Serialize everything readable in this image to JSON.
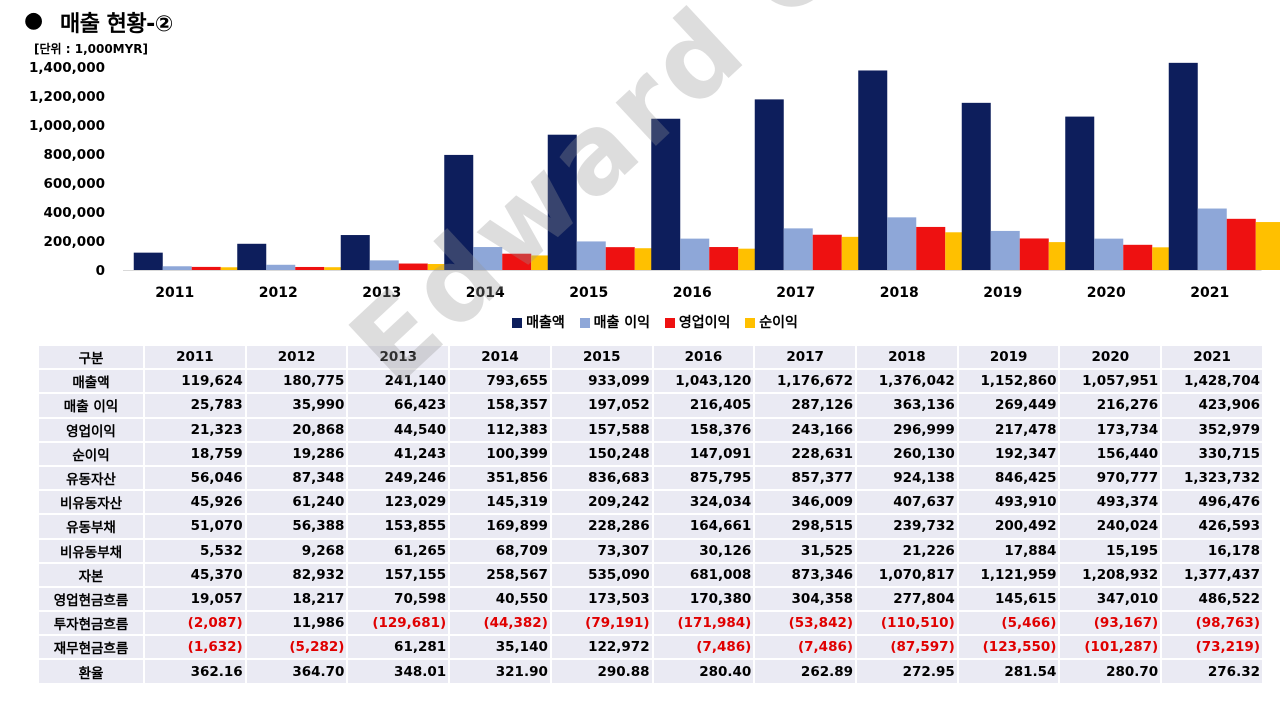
{
  "title": {
    "bullet": "●",
    "text": "매출 현황-②"
  },
  "unit_label": "[단위 : 1,000MYR]",
  "watermark": "Edward Choi",
  "colors": {
    "sales": "#0d1e5c",
    "gross": "#8ea7d8",
    "operating": "#ee1111",
    "net": "#ffc000"
  },
  "chart_data": {
    "type": "bar",
    "categories": [
      "2011",
      "2012",
      "2013",
      "2014",
      "2015",
      "2016",
      "2017",
      "2018",
      "2019",
      "2020",
      "2021"
    ],
    "series": [
      {
        "name": "매출액",
        "values": [
          119624,
          180775,
          241140,
          793655,
          933099,
          1043120,
          1176672,
          1376042,
          1152860,
          1057951,
          1428704
        ]
      },
      {
        "name": "매출 이익",
        "values": [
          25783,
          35990,
          66423,
          158357,
          197052,
          216405,
          287126,
          363136,
          269449,
          216276,
          423906
        ]
      },
      {
        "name": "영업이익",
        "values": [
          21323,
          20868,
          44540,
          112383,
          157588,
          158376,
          243166,
          296999,
          217478,
          173734,
          352979
        ]
      },
      {
        "name": "순이익",
        "values": [
          18759,
          19286,
          41243,
          100399,
          150248,
          147091,
          228631,
          260130,
          192347,
          156440,
          330715
        ]
      }
    ],
    "yticks": [
      "0",
      "200,000",
      "400,000",
      "600,000",
      "800,000",
      "1,000,000",
      "1,200,000",
      "1,400,000"
    ],
    "ylim": [
      0,
      1400000
    ],
    "legend_position": "bottom",
    "grid": false
  },
  "table": {
    "header": [
      "구분",
      "2011",
      "2012",
      "2013",
      "2014",
      "2015",
      "2016",
      "2017",
      "2018",
      "2019",
      "2020",
      "2021"
    ],
    "rows": [
      {
        "label": "매출액",
        "values": [
          "119,624",
          "180,775",
          "241,140",
          "793,655",
          "933,099",
          "1,043,120",
          "1,176,672",
          "1,376,042",
          "1,152,860",
          "1,057,951",
          "1,428,704"
        ]
      },
      {
        "label": "매출 이익",
        "values": [
          "25,783",
          "35,990",
          "66,423",
          "158,357",
          "197,052",
          "216,405",
          "287,126",
          "363,136",
          "269,449",
          "216,276",
          "423,906"
        ]
      },
      {
        "label": "영업이익",
        "values": [
          "21,323",
          "20,868",
          "44,540",
          "112,383",
          "157,588",
          "158,376",
          "243,166",
          "296,999",
          "217,478",
          "173,734",
          "352,979"
        ]
      },
      {
        "label": "순이익",
        "values": [
          "18,759",
          "19,286",
          "41,243",
          "100,399",
          "150,248",
          "147,091",
          "228,631",
          "260,130",
          "192,347",
          "156,440",
          "330,715"
        ]
      },
      {
        "label": "유동자산",
        "values": [
          "56,046",
          "87,348",
          "249,246",
          "351,856",
          "836,683",
          "875,795",
          "857,377",
          "924,138",
          "846,425",
          "970,777",
          "1,323,732"
        ]
      },
      {
        "label": "비유동자산",
        "values": [
          "45,926",
          "61,240",
          "123,029",
          "145,319",
          "209,242",
          "324,034",
          "346,009",
          "407,637",
          "493,910",
          "493,374",
          "496,476"
        ]
      },
      {
        "label": "유동부채",
        "values": [
          "51,070",
          "56,388",
          "153,855",
          "169,899",
          "228,286",
          "164,661",
          "298,515",
          "239,732",
          "200,492",
          "240,024",
          "426,593"
        ]
      },
      {
        "label": "비유동부채",
        "values": [
          "5,532",
          "9,268",
          "61,265",
          "68,709",
          "73,307",
          "30,126",
          "31,525",
          "21,226",
          "17,884",
          "15,195",
          "16,178"
        ]
      },
      {
        "label": "자본",
        "values": [
          "45,370",
          "82,932",
          "157,155",
          "258,567",
          "535,090",
          "681,008",
          "873,346",
          "1,070,817",
          "1,121,959",
          "1,208,932",
          "1,377,437"
        ]
      },
      {
        "label": "영업현금흐름",
        "values": [
          "19,057",
          "18,217",
          "70,598",
          "40,550",
          "173,503",
          "170,380",
          "304,358",
          "277,804",
          "145,615",
          "347,010",
          "486,522"
        ]
      },
      {
        "label": "투자현금흐름",
        "values": [
          "(2,087)",
          "11,986",
          "(129,681)",
          "(44,382)",
          "(79,191)",
          "(171,984)",
          "(53,842)",
          "(110,510)",
          "(5,466)",
          "(93,167)",
          "(98,763)"
        ]
      },
      {
        "label": "재무현금흐름",
        "values": [
          "(1,632)",
          "(5,282)",
          "61,281",
          "35,140",
          "122,972",
          "(7,486)",
          "(7,486)",
          "(87,597)",
          "(123,550)",
          "(101,287)",
          "(73,219)"
        ]
      },
      {
        "label": "환율",
        "values": [
          "362.16",
          "364.70",
          "348.01",
          "321.90",
          "290.88",
          "280.40",
          "262.89",
          "272.95",
          "281.54",
          "280.70",
          "276.32"
        ]
      }
    ]
  }
}
